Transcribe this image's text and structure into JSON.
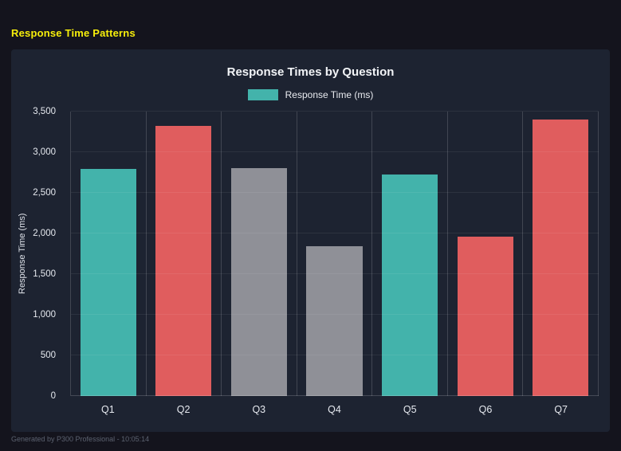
{
  "page": {
    "heading": "Response Time Patterns",
    "footer": "Generated by P300 Professional - 10:05:14"
  },
  "colors": {
    "page_background": "#14141d",
    "panel_background": "#1d2331",
    "heading_yellow": "#f7ef0b",
    "teal": "#43b3ab",
    "red": "#e05d5e",
    "gray": "#8f9097",
    "text_light": "#e6e9ef"
  },
  "chart_data": {
    "type": "bar",
    "title": "Response Times by Question",
    "legend": [
      {
        "label": "Response Time (ms)",
        "color": "#43b3ab"
      }
    ],
    "legend_position": "top",
    "categories": [
      "Q1",
      "Q2",
      "Q3",
      "Q4",
      "Q5",
      "Q6",
      "Q7"
    ],
    "values": [
      2790,
      3320,
      2800,
      1840,
      2730,
      1960,
      3400
    ],
    "bar_colors": [
      "#43b3ab",
      "#e05d5e",
      "#8f9097",
      "#8f9097",
      "#43b3ab",
      "#e05d5e",
      "#e05d5e"
    ],
    "xlabel": "",
    "ylabel": "Response Time (ms)",
    "ylim": [
      0,
      3500
    ],
    "ytick_step": 500,
    "ytick_labels": [
      "0",
      "500",
      "1,000",
      "1,500",
      "2,000",
      "2,500",
      "3,000",
      "3,500"
    ],
    "grid": true
  }
}
